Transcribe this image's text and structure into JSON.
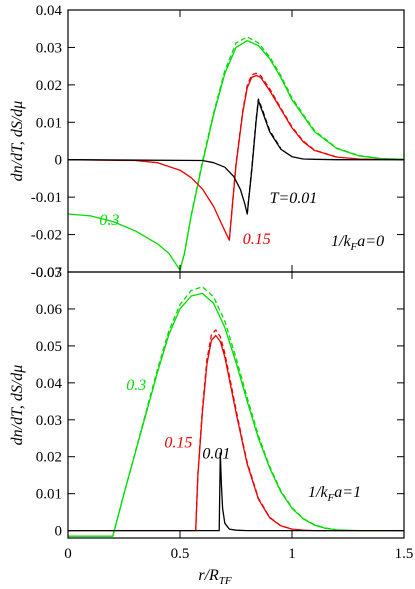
{
  "chart_data": [
    {
      "type": "line",
      "ylabel": "dn/dT, dS/dμ",
      "xlim": [
        0,
        1.5
      ],
      "ylim": [
        -0.03,
        0.04
      ],
      "yticks": [
        "0.04",
        "0.03",
        "0.02",
        "0.01",
        "0",
        "-0.01",
        "-0.02",
        "-0.03"
      ],
      "yticks_val": [
        0.04,
        0.03,
        0.02,
        0.01,
        0,
        -0.01,
        -0.02,
        -0.03
      ],
      "panel_label": {
        "pre": "1/k",
        "sub": "F",
        "post": "a=0"
      },
      "colors": {
        "T0.3": "#00dd00",
        "T0.15": "#ee0000",
        "T0.01": "#000000"
      },
      "annotations": [
        {
          "text": "T=0.01",
          "color": "#000000",
          "x": 0.9,
          "y": -0.0115
        },
        {
          "text": "0.15",
          "color": "#ee0000",
          "x": 0.78,
          "y": -0.0225
        },
        {
          "text": "0.3",
          "color": "#00dd00",
          "x": 0.14,
          "y": -0.0175
        }
      ],
      "series": [
        {
          "key": "g_solid",
          "color": "#00dd00",
          "dash": false,
          "x": [
            0,
            0.1,
            0.2,
            0.3,
            0.4,
            0.45,
            0.5,
            0.52,
            0.55,
            0.6,
            0.65,
            0.7,
            0.75,
            0.8,
            0.85,
            0.9,
            0.95,
            1.0,
            1.1,
            1.2,
            1.3,
            1.4,
            1.5
          ],
          "y": [
            -0.0145,
            -0.015,
            -0.0165,
            -0.019,
            -0.0225,
            -0.025,
            -0.0295,
            -0.025,
            -0.015,
            -0.001,
            0.012,
            0.023,
            0.03,
            0.0318,
            0.0305,
            0.027,
            0.022,
            0.016,
            0.0075,
            0.003,
            0.001,
            0.0003,
            0.0001
          ]
        },
        {
          "key": "g_dash",
          "color": "#00dd00",
          "dash": true,
          "x": [
            0.5,
            0.52,
            0.55,
            0.6,
            0.65,
            0.7,
            0.75,
            0.8,
            0.85,
            0.9,
            0.95,
            1.0,
            1.1,
            1.2,
            1.3,
            1.4,
            1.5
          ],
          "y": [
            -0.0295,
            -0.025,
            -0.0148,
            -0.0005,
            0.0125,
            0.0238,
            0.0312,
            0.0328,
            0.0312,
            0.0275,
            0.0225,
            0.0165,
            0.0078,
            0.0031,
            0.0011,
            0.0003,
            0.0001
          ]
        },
        {
          "key": "r_solid",
          "color": "#ee0000",
          "dash": false,
          "x": [
            0,
            0.3,
            0.4,
            0.5,
            0.55,
            0.6,
            0.65,
            0.7,
            0.72,
            0.75,
            0.78,
            0.8,
            0.82,
            0.84,
            0.86,
            0.9,
            0.95,
            1.0,
            1.05,
            1.1,
            1.2,
            1.3,
            1.5
          ],
          "y": [
            0,
            -0.0002,
            -0.0008,
            -0.0028,
            -0.0048,
            -0.0078,
            -0.0125,
            -0.019,
            -0.0215,
            -0.0015,
            0.0125,
            0.0192,
            0.022,
            0.0225,
            0.022,
            0.0185,
            0.0135,
            0.0085,
            0.0048,
            0.0025,
            0.0007,
            0.0002,
            0
          ]
        },
        {
          "key": "r_dash",
          "color": "#ee0000",
          "dash": true,
          "x": [
            0.72,
            0.75,
            0.78,
            0.8,
            0.82,
            0.84,
            0.86,
            0.9,
            0.95,
            1.0,
            1.05,
            1.1,
            1.2
          ],
          "y": [
            -0.0215,
            -0.001,
            0.013,
            0.0198,
            0.0227,
            0.0231,
            0.0225,
            0.019,
            0.0138,
            0.0088,
            0.005,
            0.0026,
            0.0007
          ]
        },
        {
          "key": "k_solid",
          "color": "#000000",
          "dash": false,
          "x": [
            0,
            0.6,
            0.65,
            0.7,
            0.74,
            0.77,
            0.79,
            0.8,
            0.82,
            0.84,
            0.85,
            0.87,
            0.9,
            0.95,
            1.0,
            1.05,
            1.1,
            1.2,
            1.5
          ],
          "y": [
            0,
            -0.0002,
            -0.0008,
            -0.002,
            -0.0045,
            -0.008,
            -0.012,
            -0.0145,
            -0.003,
            0.0105,
            0.0158,
            0.0125,
            0.0075,
            0.0028,
            0.0008,
            0.0002,
            0.0001,
            0,
            0
          ]
        },
        {
          "key": "k_dash",
          "color": "#000000",
          "dash": true,
          "x": [
            0.8,
            0.82,
            0.84,
            0.85,
            0.87,
            0.9,
            0.95
          ],
          "y": [
            -0.0145,
            -0.0025,
            0.011,
            0.0162,
            0.013,
            0.0078,
            0.003
          ]
        }
      ]
    },
    {
      "type": "line",
      "xlabel": {
        "pre": "r/R",
        "sub": "TF"
      },
      "ylabel": "dn/dT, dS/dμ",
      "xlim": [
        0,
        1.5
      ],
      "ylim": [
        -0.002,
        0.07
      ],
      "xticks": [
        "0",
        "0.5",
        "1",
        "1.5"
      ],
      "xticks_val": [
        0,
        0.5,
        1,
        1.5
      ],
      "yticks": [
        "0.07",
        "0.06",
        "0.05",
        "0.04",
        "0.03",
        "0.02",
        "0.01",
        "0"
      ],
      "yticks_val": [
        0.07,
        0.06,
        0.05,
        0.04,
        0.03,
        0.02,
        0.01,
        0
      ],
      "panel_label": {
        "pre": "1/k",
        "sub": "F",
        "post": "a=1"
      },
      "annotations": [
        {
          "text": "0.3",
          "color": "#00dd00",
          "x": 0.26,
          "y": 0.038
        },
        {
          "text": "0.15",
          "color": "#ee0000",
          "x": 0.43,
          "y": 0.0225
        },
        {
          "text": "0.01",
          "color": "#000000",
          "x": 0.6,
          "y": 0.0195
        }
      ],
      "series": [
        {
          "key": "g_solid",
          "color": "#00dd00",
          "dash": false,
          "x": [
            0,
            0.2,
            0.25,
            0.3,
            0.35,
            0.4,
            0.45,
            0.5,
            0.55,
            0.6,
            0.65,
            0.7,
            0.75,
            0.8,
            0.85,
            0.9,
            0.95,
            1.0,
            1.05,
            1.1,
            1.15,
            1.2,
            1.3,
            1.5
          ],
          "y": [
            -0.0015,
            -0.0015,
            0.01,
            0.021,
            0.032,
            0.043,
            0.053,
            0.06,
            0.0635,
            0.0642,
            0.0615,
            0.055,
            0.0455,
            0.035,
            0.025,
            0.017,
            0.0105,
            0.006,
            0.0032,
            0.0015,
            0.0006,
            0.0002,
            0,
            0
          ]
        },
        {
          "key": "g_dash",
          "color": "#00dd00",
          "dash": true,
          "x": [
            0.2,
            0.25,
            0.3,
            0.35,
            0.4,
            0.45,
            0.5,
            0.55,
            0.6,
            0.65,
            0.7,
            0.75,
            0.8,
            0.85,
            0.9,
            0.95,
            1.0,
            1.05,
            1.1,
            1.15,
            1.2
          ],
          "y": [
            -0.0015,
            0.01,
            0.0212,
            0.0325,
            0.0438,
            0.054,
            0.0612,
            0.065,
            0.066,
            0.0633,
            0.0567,
            0.0468,
            0.036,
            0.0257,
            0.0174,
            0.0108,
            0.0062,
            0.0033,
            0.0016,
            0.0007,
            0.0002
          ]
        },
        {
          "key": "r_solid",
          "color": "#ee0000",
          "dash": false,
          "x": [
            0,
            0.57,
            0.58,
            0.6,
            0.62,
            0.64,
            0.66,
            0.68,
            0.7,
            0.72,
            0.75,
            0.78,
            0.8,
            0.85,
            0.9,
            0.95,
            1.0,
            1.05,
            1.1,
            1.2,
            1.3,
            1.5
          ],
          "y": [
            0,
            0,
            0.015,
            0.032,
            0.045,
            0.0515,
            0.0528,
            0.0512,
            0.047,
            0.041,
            0.032,
            0.0235,
            0.018,
            0.0085,
            0.0035,
            0.0013,
            0.0004,
            0.0001,
            0,
            0,
            0,
            0
          ]
        },
        {
          "key": "r_dash",
          "color": "#ee0000",
          "dash": true,
          "x": [
            0.57,
            0.58,
            0.6,
            0.62,
            0.64,
            0.66,
            0.68,
            0.7,
            0.72,
            0.75,
            0.78,
            0.8,
            0.85,
            0.9,
            0.95,
            1.0
          ],
          "y": [
            0,
            0.0155,
            0.033,
            0.0462,
            0.053,
            0.0543,
            0.0525,
            0.048,
            0.042,
            0.0328,
            0.024,
            0.0185,
            0.0088,
            0.0036,
            0.0013,
            0.0004
          ]
        },
        {
          "key": "k_solid",
          "color": "#000000",
          "dash": false,
          "x": [
            0,
            0.675,
            0.68,
            0.685,
            0.69,
            0.7,
            0.72,
            0.75,
            0.8,
            1.5
          ],
          "y": [
            0,
            0,
            0.021,
            0.0125,
            0.006,
            0.002,
            0.0004,
            0.0001,
            0,
            0
          ]
        }
      ]
    }
  ]
}
